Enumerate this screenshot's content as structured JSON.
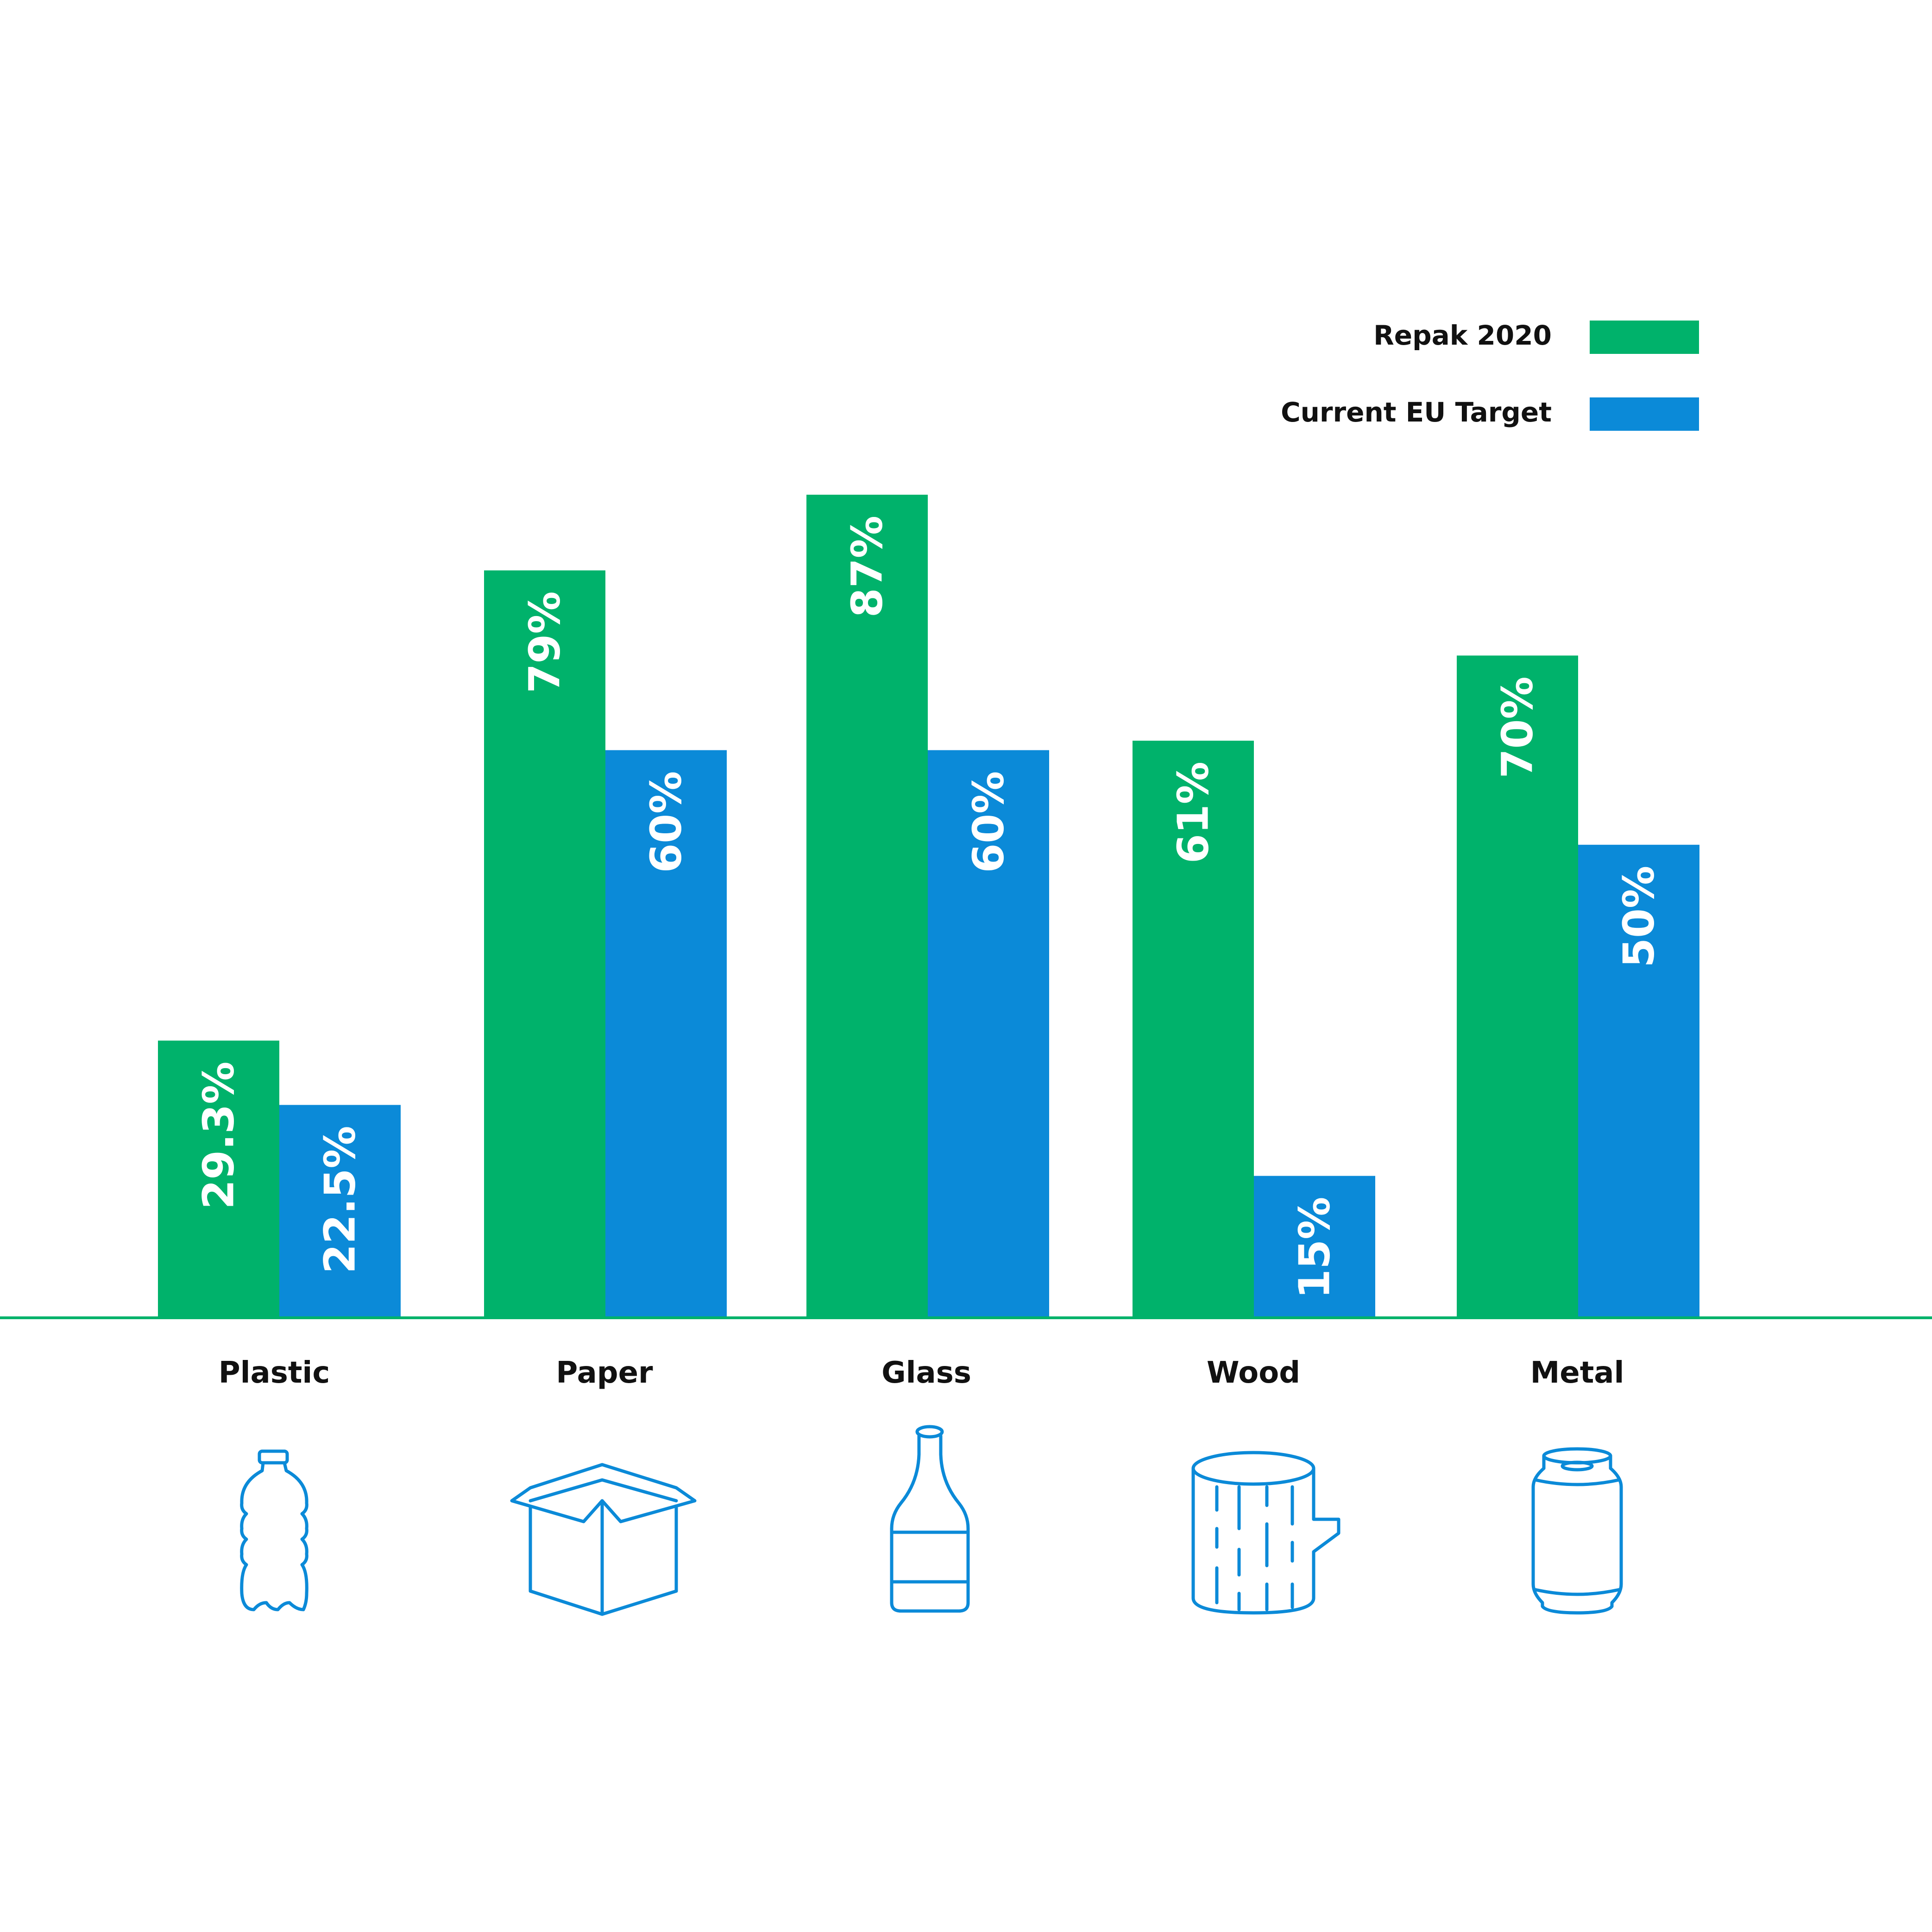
{
  "chart_data": {
    "type": "bar",
    "title": "",
    "xlabel": "",
    "ylabel": "",
    "ylim": [
      0,
      100
    ],
    "grid": false,
    "legend_position": "top-right",
    "categories": [
      "Plastic",
      "Paper",
      "Glass",
      "Wood",
      "Metal"
    ],
    "series": [
      {
        "name": "Repak 2020",
        "color": "#00b26b",
        "values": [
          29.3,
          79,
          87,
          61,
          70
        ],
        "labels": [
          "29.3%",
          "79%",
          "87%",
          "61%",
          "70%"
        ]
      },
      {
        "name": "Current EU Target",
        "color": "#0b8ad8",
        "values": [
          22.5,
          60,
          60,
          15,
          50
        ],
        "labels": [
          "22.5%",
          "60%",
          "60%",
          "15%",
          "50%"
        ]
      }
    ],
    "icons": [
      "plastic-bottle-icon",
      "cardboard-box-icon",
      "glass-bottle-icon",
      "wood-log-icon",
      "metal-can-icon"
    ],
    "icon_color": "#0b8ad8",
    "baseline_color": "#00b26b"
  }
}
